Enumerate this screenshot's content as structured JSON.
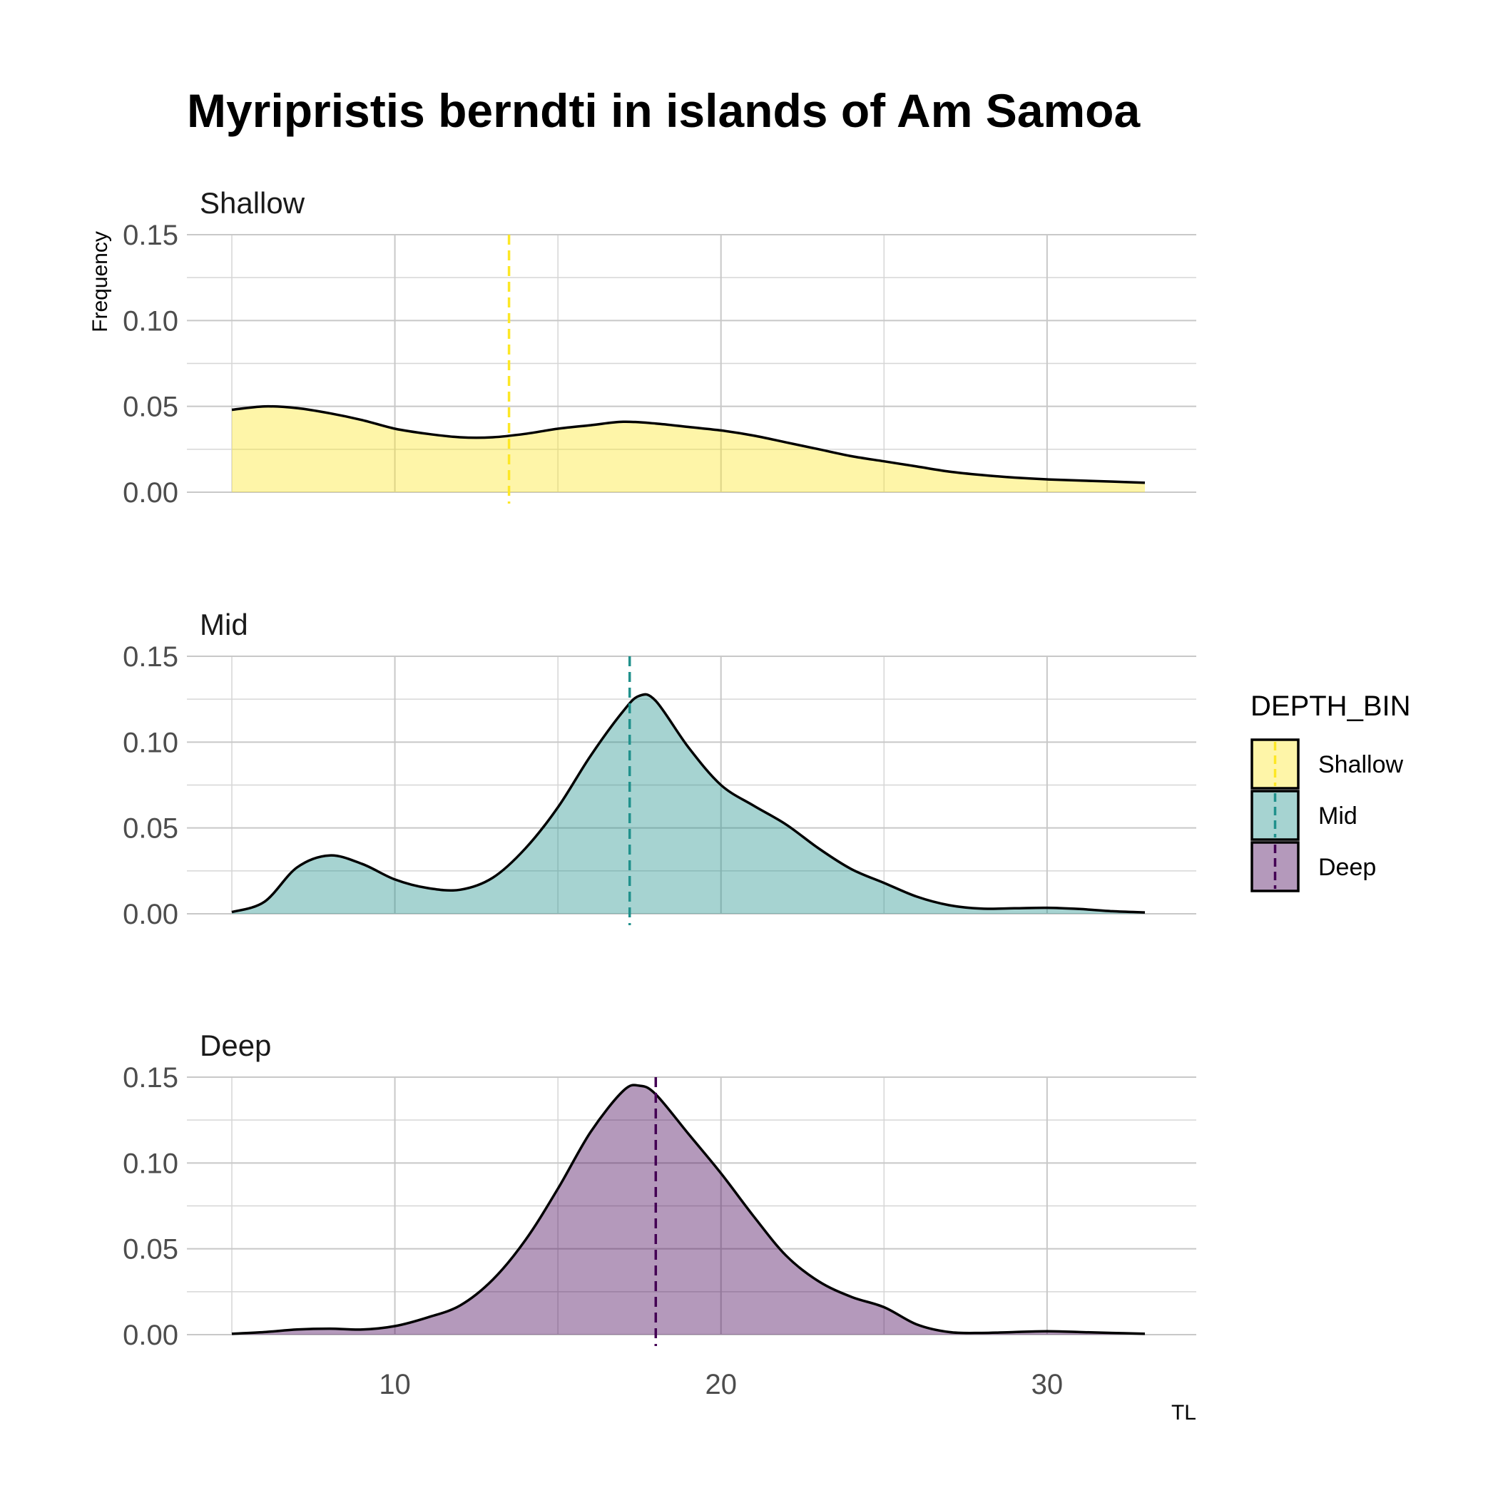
{
  "chart_data": {
    "type": "area",
    "title": "Myripristis berndti in islands of Am Samoa",
    "xlabel": "TL",
    "ylabel": "Frequency",
    "xlim": [
      5,
      33
    ],
    "ylim": [
      0,
      0.15
    ],
    "x_ticks": [
      10,
      20,
      30
    ],
    "x_tick_labels": [
      "10",
      "20",
      "30"
    ],
    "y_ticks": [
      0,
      0.05,
      0.1,
      0.15
    ],
    "y_tick_labels": [
      "0.00",
      "0.05",
      "0.10",
      "0.15"
    ],
    "grid": true,
    "legend": {
      "title": "DEPTH_BIN",
      "position": "right",
      "entries": [
        "Shallow",
        "Mid",
        "Deep"
      ]
    },
    "facets": [
      {
        "name": "Shallow",
        "color": "#fde725",
        "mean": 13.5,
        "x": [
          5,
          6,
          7,
          8,
          9,
          10,
          11,
          12,
          13,
          14,
          15,
          16,
          17,
          18,
          19,
          20,
          21,
          22,
          23,
          24,
          25,
          26,
          27,
          28,
          29,
          30,
          31,
          32,
          33
        ],
        "values": [
          0.048,
          0.05,
          0.049,
          0.046,
          0.042,
          0.037,
          0.034,
          0.032,
          0.032,
          0.034,
          0.037,
          0.039,
          0.041,
          0.04,
          0.038,
          0.036,
          0.033,
          0.029,
          0.025,
          0.021,
          0.018,
          0.015,
          0.012,
          0.01,
          0.0085,
          0.0075,
          0.0068,
          0.0062,
          0.0055
        ]
      },
      {
        "name": "Mid",
        "color": "#21918c",
        "mean": 17.2,
        "x": [
          5,
          6,
          7,
          8,
          9,
          10,
          11,
          12,
          13,
          14,
          15,
          16,
          17,
          17.5,
          18,
          19,
          20,
          21,
          22,
          23,
          24,
          25,
          26,
          27,
          28,
          29,
          30,
          31,
          32,
          33
        ],
        "values": [
          0.001,
          0.007,
          0.027,
          0.034,
          0.029,
          0.02,
          0.015,
          0.014,
          0.021,
          0.038,
          0.062,
          0.092,
          0.118,
          0.127,
          0.124,
          0.097,
          0.075,
          0.063,
          0.052,
          0.038,
          0.026,
          0.018,
          0.01,
          0.005,
          0.003,
          0.0032,
          0.0035,
          0.0028,
          0.0015,
          0.0008
        ]
      },
      {
        "name": "Deep",
        "color": "#440154",
        "mean": 18.0,
        "x": [
          5,
          6,
          7,
          8,
          9,
          10,
          11,
          12,
          13,
          14,
          15,
          16,
          17,
          17.5,
          18,
          19,
          20,
          21,
          22,
          23,
          24,
          25,
          26,
          27,
          28,
          29,
          30,
          31,
          32,
          33
        ],
        "values": [
          0.0005,
          0.0015,
          0.003,
          0.0035,
          0.003,
          0.005,
          0.01,
          0.017,
          0.032,
          0.055,
          0.085,
          0.118,
          0.142,
          0.145,
          0.14,
          0.117,
          0.094,
          0.069,
          0.046,
          0.031,
          0.022,
          0.016,
          0.006,
          0.0015,
          0.001,
          0.0015,
          0.002,
          0.0015,
          0.001,
          0.0005
        ]
      }
    ]
  }
}
